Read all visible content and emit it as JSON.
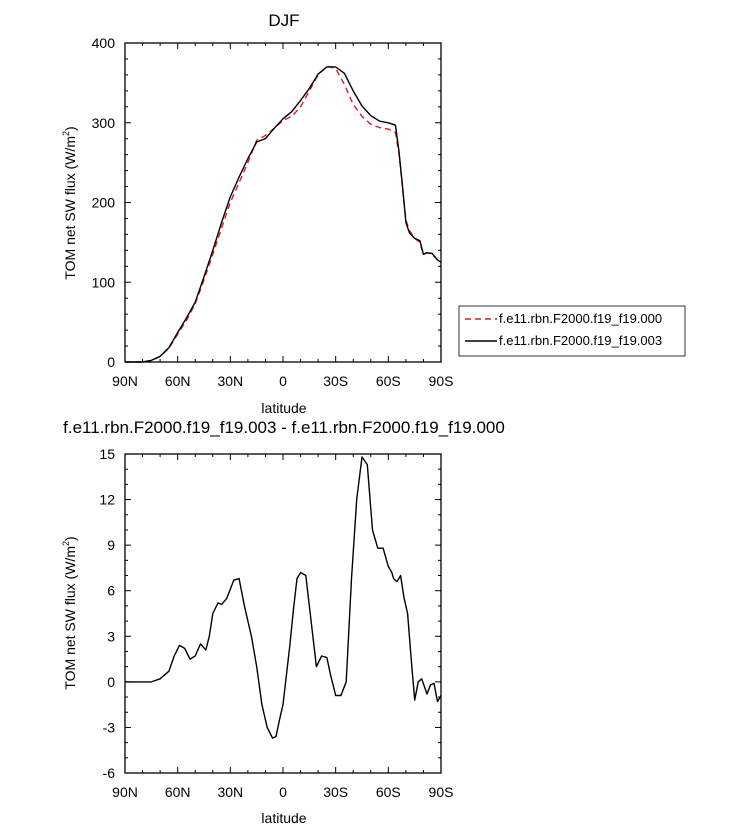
{
  "chart_data": [
    {
      "type": "line",
      "title": "DJF",
      "xlabel": "latitude",
      "ylabel": "TOM net SW flux (W/m²)",
      "ylabel_main": "TOM net SW flux (W/m",
      "ylabel_sup": "2",
      "ylabel_close": ")",
      "xlim": [
        90,
        -90
      ],
      "ylim": [
        0,
        400
      ],
      "x_ticks": [
        90,
        60,
        30,
        0,
        -30,
        -60,
        -90
      ],
      "x_tick_labels": [
        "90N",
        "60N",
        "30N",
        "0",
        "30S",
        "60S",
        "90S"
      ],
      "y_ticks": [
        0,
        100,
        200,
        300,
        400
      ],
      "y_tick_labels": [
        "0",
        "100",
        "200",
        "300",
        "400"
      ],
      "legend_position": "right",
      "series": [
        {
          "name": "f.e11.rbn.F2000.f19_f19.000",
          "color": "#e41a1c",
          "dash": "dashed",
          "x": [
            90,
            85,
            80,
            75,
            70,
            65,
            60,
            55,
            50,
            45,
            40,
            35,
            30,
            25,
            20,
            15,
            10,
            5,
            0,
            -5,
            -10,
            -15,
            -20,
            -25,
            -30,
            -35,
            -40,
            -45,
            -50,
            -55,
            -60,
            -64,
            -66,
            -68,
            -70,
            -72,
            -75,
            -78,
            -80,
            -82,
            -85,
            -88,
            -90
          ],
          "y": [
            0,
            0,
            0,
            2,
            7,
            17,
            35,
            52,
            73,
            103,
            135,
            168,
            200,
            225,
            250,
            278,
            284,
            293,
            303,
            308,
            320,
            340,
            360,
            371,
            368,
            348,
            323,
            308,
            298,
            294,
            292,
            288,
            262,
            220,
            178,
            165,
            155,
            150,
            135,
            137,
            135,
            128,
            126
          ]
        },
        {
          "name": "f.e11.rbn.F2000.f19_f19.003",
          "color": "#000000",
          "dash": "solid",
          "x": [
            90,
            85,
            80,
            75,
            70,
            65,
            60,
            55,
            50,
            45,
            40,
            35,
            30,
            25,
            20,
            15,
            10,
            5,
            0,
            -5,
            -10,
            -15,
            -20,
            -25,
            -30,
            -35,
            -40,
            -45,
            -50,
            -55,
            -60,
            -64,
            -66,
            -68,
            -70,
            -72,
            -75,
            -78,
            -80,
            -82,
            -85,
            -88,
            -90
          ],
          "y": [
            0,
            0,
            0,
            2,
            7,
            18,
            37,
            55,
            75,
            107,
            140,
            175,
            207,
            232,
            255,
            276,
            280,
            293,
            305,
            314,
            328,
            343,
            361,
            370,
            370,
            362,
            340,
            321,
            309,
            302,
            300,
            297,
            265,
            222,
            175,
            162,
            155,
            152,
            135,
            137,
            136,
            128,
            125
          ]
        }
      ]
    },
    {
      "type": "line",
      "title": "f.e11.rbn.F2000.f19_f19.003 - f.e11.rbn.F2000.f19_f19.000",
      "xlabel": "latitude",
      "ylabel": "TOM net SW flux (W/m²)",
      "ylabel_main": "TOM net SW flux (W/m",
      "ylabel_sup": "2",
      "ylabel_close": ")",
      "xlim": [
        90,
        -90
      ],
      "ylim": [
        -6,
        15
      ],
      "x_ticks": [
        90,
        60,
        30,
        0,
        -30,
        -60,
        -90
      ],
      "x_tick_labels": [
        "90N",
        "60N",
        "30N",
        "0",
        "30S",
        "60S",
        "90S"
      ],
      "y_ticks": [
        -6,
        -3,
        0,
        3,
        6,
        9,
        12,
        15
      ],
      "y_tick_labels": [
        "-6",
        "-3",
        "0",
        "3",
        "6",
        "9",
        "12",
        "15"
      ],
      "series": [
        {
          "color": "#000000",
          "dash": "solid",
          "x": [
            90,
            75,
            70,
            65,
            62,
            59,
            56,
            53,
            50,
            47,
            44,
            42,
            40,
            37,
            35,
            32,
            28,
            25,
            22,
            18,
            15,
            12,
            9,
            6,
            4,
            2,
            0,
            -2,
            -4,
            -6,
            -8,
            -10,
            -13,
            -16,
            -19,
            -22,
            -25,
            -27,
            -30,
            -33,
            -36,
            -39,
            -42,
            -45,
            -48,
            -51,
            -54,
            -57,
            -60,
            -62,
            -63,
            -65,
            -67,
            -69,
            -71,
            -73,
            -75,
            -77,
            -79,
            -82,
            -84,
            -86,
            -88,
            -90
          ],
          "y": [
            0,
            0,
            0.2,
            0.7,
            1.7,
            2.4,
            2.2,
            1.5,
            1.7,
            2.5,
            2.1,
            3.0,
            4.5,
            5.2,
            5.1,
            5.5,
            6.7,
            6.8,
            5.0,
            3.0,
            1.0,
            -1.5,
            -3.0,
            -3.7,
            -3.6,
            -2.5,
            -1.5,
            0.5,
            2.5,
            4.8,
            6.8,
            7.2,
            7.0,
            4.0,
            1.0,
            1.7,
            1.6,
            0.5,
            -0.9,
            -0.9,
            0.0,
            6.8,
            12.0,
            14.8,
            14.3,
            10.0,
            8.8,
            8.8,
            7.6,
            7.2,
            6.8,
            6.6,
            7.0,
            5.5,
            4.5,
            1.5,
            -1.2,
            0.0,
            0.2,
            -0.8,
            -0.2,
            -0.1,
            -1.3,
            -0.9
          ]
        }
      ]
    }
  ]
}
